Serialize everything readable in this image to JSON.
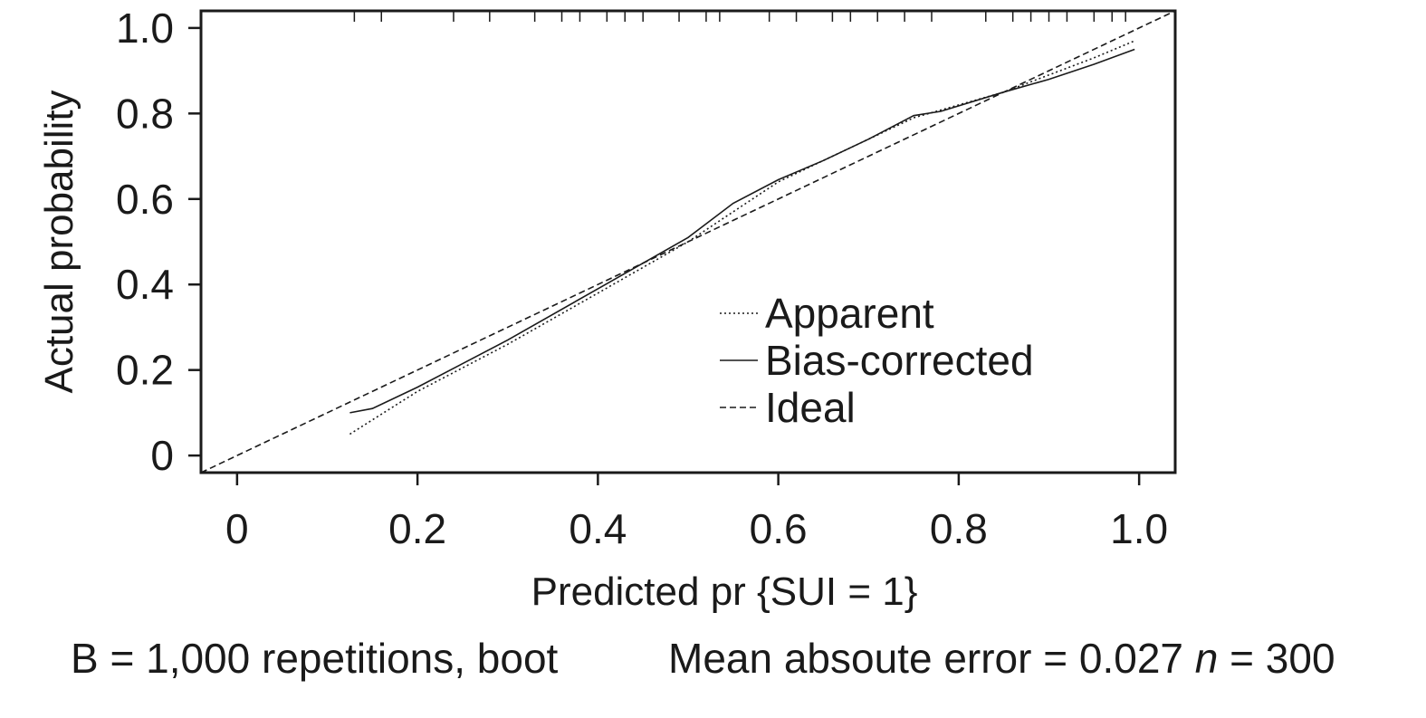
{
  "chart_data": {
    "type": "line",
    "xlabel": "Predicted pr {SUI = 1}",
    "ylabel": "Actual probability",
    "xlim": [
      -0.04,
      1.04
    ],
    "ylim": [
      -0.04,
      1.04
    ],
    "x_ticks": [
      0,
      0.2,
      0.4,
      0.6,
      0.8,
      1.0
    ],
    "x_tick_labels": [
      "0",
      "0.2",
      "0.4",
      "0.6",
      "0.8",
      "1.0"
    ],
    "y_ticks": [
      0,
      0.2,
      0.4,
      0.6,
      0.8,
      1.0
    ],
    "y_tick_labels": [
      "0",
      "0.2",
      "0.4",
      "0.6",
      "0.8",
      "1.0"
    ],
    "legend_position": "inside-right",
    "grid": false,
    "series": [
      {
        "name": "Apparent",
        "style": "dotted",
        "x": [
          0.125,
          0.2,
          0.3,
          0.4,
          0.5,
          0.55,
          0.6,
          0.65,
          0.7,
          0.75,
          0.8,
          0.85,
          0.9,
          0.95,
          0.995
        ],
        "y": [
          0.05,
          0.15,
          0.26,
          0.38,
          0.5,
          0.57,
          0.64,
          0.69,
          0.74,
          0.79,
          0.82,
          0.85,
          0.89,
          0.93,
          0.97
        ]
      },
      {
        "name": "Bias-corrected",
        "style": "solid",
        "x": [
          0.125,
          0.15,
          0.2,
          0.3,
          0.4,
          0.5,
          0.55,
          0.6,
          0.65,
          0.7,
          0.75,
          0.78,
          0.85,
          0.9,
          0.95,
          0.995
        ],
        "y": [
          0.1,
          0.11,
          0.16,
          0.27,
          0.39,
          0.51,
          0.59,
          0.645,
          0.69,
          0.74,
          0.795,
          0.805,
          0.85,
          0.88,
          0.915,
          0.95
        ]
      },
      {
        "name": "Ideal",
        "style": "dashed",
        "x": [
          -0.04,
          1.04
        ],
        "y": [
          -0.04,
          1.04
        ]
      }
    ],
    "rug_x": [
      0.13,
      0.16,
      0.24,
      0.28,
      0.33,
      0.36,
      0.38,
      0.41,
      0.43,
      0.45,
      0.49,
      0.52,
      0.535,
      0.59,
      0.62,
      0.66,
      0.68,
      0.71,
      0.74,
      0.77,
      0.83,
      0.86,
      0.88,
      0.9,
      0.92,
      0.95,
      0.97,
      0.985
    ]
  },
  "footer": {
    "bootstrap": "B = 1,000 repetitions, boot",
    "mae": "Mean absoute error = 0.027",
    "n_label": "n",
    "n_value": "= 300"
  }
}
